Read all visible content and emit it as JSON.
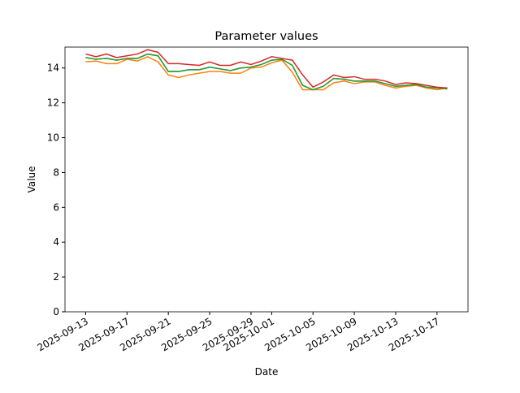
{
  "chart_data": {
    "type": "line",
    "title": "Parameter values",
    "x_label": "Date",
    "y_label": "Value",
    "x": [
      "2025-09-13",
      "2025-09-14",
      "2025-09-15",
      "2025-09-16",
      "2025-09-17",
      "2025-09-18",
      "2025-09-19",
      "2025-09-20",
      "2025-09-21",
      "2025-09-22",
      "2025-09-23",
      "2025-09-24",
      "2025-09-25",
      "2025-09-26",
      "2025-09-27",
      "2025-09-28",
      "2025-09-29",
      "2025-09-30",
      "2025-10-01",
      "2025-10-02",
      "2025-10-03",
      "2025-10-04",
      "2025-10-05",
      "2025-10-06",
      "2025-10-07",
      "2025-10-08",
      "2025-10-09",
      "2025-10-10",
      "2025-10-11",
      "2025-10-12",
      "2025-10-13",
      "2025-10-14",
      "2025-10-15",
      "2025-10-16",
      "2025-10-17",
      "2025-10-18"
    ],
    "series": [
      {
        "color": "#1f77b4",
        "values": [
          14.6,
          14.5,
          14.55,
          14.45,
          14.55,
          14.55,
          14.8,
          14.7,
          13.8,
          13.8,
          13.9,
          13.9,
          14.05,
          13.95,
          13.85,
          14.0,
          14.05,
          14.2,
          14.45,
          14.5,
          14.15,
          13.0,
          12.75,
          12.95,
          13.4,
          13.35,
          13.25,
          13.25,
          13.25,
          13.1,
          12.95,
          13.0,
          13.05,
          12.9,
          12.85,
          12.85
        ]
      },
      {
        "color": "#ff7f0e",
        "values": [
          14.35,
          14.4,
          14.25,
          14.25,
          14.5,
          14.4,
          14.65,
          14.35,
          13.6,
          13.45,
          13.6,
          13.7,
          13.8,
          13.8,
          13.7,
          13.7,
          14.0,
          14.05,
          14.3,
          14.45,
          13.75,
          12.75,
          12.75,
          12.75,
          13.15,
          13.25,
          13.1,
          13.2,
          13.2,
          13.0,
          12.85,
          12.95,
          13.0,
          12.85,
          12.75,
          12.85
        ]
      },
      {
        "color": "#2ca02c",
        "values": [
          14.6,
          14.5,
          14.55,
          14.45,
          14.55,
          14.55,
          14.8,
          14.7,
          13.8,
          13.8,
          13.9,
          13.9,
          14.05,
          13.95,
          13.85,
          14.0,
          14.05,
          14.2,
          14.45,
          14.5,
          14.15,
          13.0,
          12.75,
          12.95,
          13.4,
          13.35,
          13.25,
          13.25,
          13.25,
          13.1,
          12.95,
          13.0,
          13.05,
          12.9,
          12.85,
          12.8
        ]
      },
      {
        "color": "#d62728",
        "values": [
          14.8,
          14.65,
          14.8,
          14.6,
          14.7,
          14.8,
          15.05,
          14.9,
          14.25,
          14.25,
          14.2,
          14.15,
          14.35,
          14.15,
          14.15,
          14.35,
          14.2,
          14.4,
          14.65,
          14.55,
          14.45,
          13.6,
          12.9,
          13.2,
          13.6,
          13.45,
          13.5,
          13.35,
          13.35,
          13.25,
          13.05,
          13.15,
          13.1,
          13.0,
          12.9,
          12.85
        ]
      }
    ],
    "xlim": [
      "2025-09-11",
      "2025-10-20"
    ],
    "xticks": [
      "2025-09-13",
      "2025-09-17",
      "2025-09-21",
      "2025-09-25",
      "2025-09-29",
      "2025-10-01",
      "2025-10-05",
      "2025-10-09",
      "2025-10-13",
      "2025-10-17"
    ],
    "ylim": [
      0,
      15.2
    ],
    "yticks": [
      0,
      2,
      4,
      6,
      8,
      10,
      12,
      14
    ]
  }
}
